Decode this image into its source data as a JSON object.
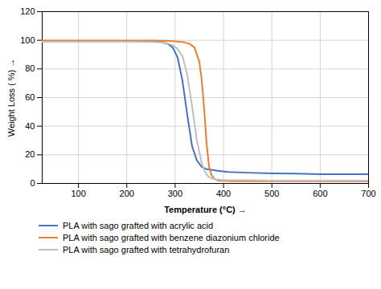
{
  "chart_data": {
    "type": "line",
    "xlabel": "Temperature (°C)",
    "ylabel": "Weight Loss ( %)",
    "xlim": [
      25,
      700
    ],
    "ylim": [
      0,
      120
    ],
    "xticks": [
      100,
      200,
      300,
      400,
      500,
      600,
      700
    ],
    "yticks": [
      0,
      20,
      40,
      60,
      80,
      100,
      120
    ],
    "grid": true,
    "legend": "bottom",
    "series": [
      {
        "name": "PLA with sago grafted with acrylic acid",
        "color": "#4472C4",
        "x": [
          25,
          50,
          100,
          150,
          200,
          250,
          270,
          285,
          295,
          305,
          315,
          325,
          335,
          345,
          355,
          365,
          375,
          385,
          395,
          410,
          450,
          500,
          550,
          600,
          650,
          700
        ],
        "values": [
          99.5,
          99.5,
          99.5,
          99.5,
          99.5,
          99.2,
          98.8,
          97.5,
          95.0,
          88.0,
          72.0,
          48.0,
          26.0,
          16.0,
          11.5,
          10.0,
          9.5,
          9.0,
          8.5,
          8.0,
          7.5,
          7.0,
          6.8,
          6.5,
          6.5,
          6.5
        ]
      },
      {
        "name": "PLA with sago grafted with benzene diazonium chloride",
        "color": "#ED7D31",
        "x": [
          25,
          50,
          100,
          150,
          200,
          250,
          270,
          290,
          300,
          310,
          320,
          330,
          340,
          350,
          355,
          360,
          365,
          370,
          375,
          380,
          385,
          390,
          400,
          420,
          450,
          500,
          550,
          600,
          650,
          700
        ],
        "values": [
          99.8,
          99.8,
          99.8,
          99.8,
          99.8,
          99.8,
          99.7,
          99.5,
          99.2,
          99.0,
          98.5,
          97.5,
          95.0,
          85.0,
          72.0,
          52.0,
          28.0,
          12.0,
          6.0,
          3.5,
          2.5,
          2.0,
          1.8,
          1.5,
          1.5,
          1.5,
          1.5,
          1.5,
          1.5,
          1.5
        ]
      },
      {
        "name": "PLA with sago grafted with tetrahydrofuran",
        "color": "#BFBFBF",
        "x": [
          25,
          50,
          100,
          150,
          200,
          250,
          270,
          285,
          295,
          305,
          315,
          325,
          335,
          345,
          355,
          362,
          368,
          373,
          378,
          385,
          395,
          410,
          450,
          500,
          550,
          600,
          650,
          700
        ],
        "values": [
          99.0,
          99.0,
          99.0,
          99.0,
          99.0,
          98.8,
          98.5,
          97.8,
          96.5,
          94.0,
          89.0,
          76.0,
          54.0,
          30.0,
          14.0,
          8.0,
          5.0,
          4.0,
          3.2,
          2.8,
          2.5,
          2.3,
          2.2,
          2.0,
          2.0,
          2.0,
          2.0,
          2.0
        ]
      }
    ]
  }
}
